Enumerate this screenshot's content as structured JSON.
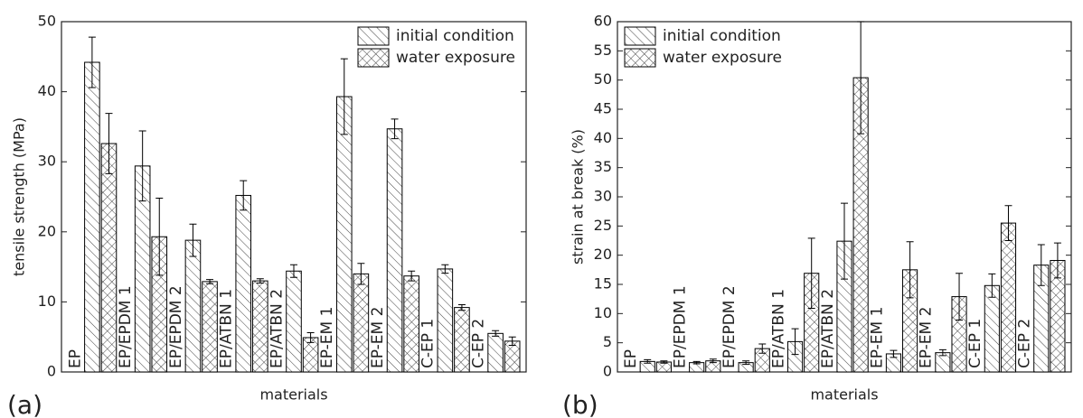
{
  "chart_data": [
    {
      "type": "bar",
      "panel_label": "(a)",
      "x_label": "materials",
      "y_label": "tensile strength (MPa)",
      "categories": [
        "EP",
        "EP/EPDM 1",
        "EP/EPDM 2",
        "EP/ATBN 1",
        "EP/ATBN 2",
        "EP-EM 1",
        "EP-EM 2",
        "C-EP 1",
        "C-EP 2"
      ],
      "series": [
        {
          "name": "initial condition",
          "color": "#000000",
          "pattern": "hatch",
          "values": [
            44.2,
            29.4,
            18.8,
            25.2,
            14.4,
            39.3,
            34.7,
            14.7,
            5.5
          ],
          "errors": [
            3.6,
            5.0,
            2.3,
            2.1,
            0.9,
            5.4,
            1.4,
            0.6,
            0.4
          ]
        },
        {
          "name": "water exposure",
          "color": "#000000",
          "pattern": "crosshatch",
          "values": [
            32.6,
            19.3,
            12.9,
            13.0,
            4.9,
            14.0,
            13.7,
            9.2,
            4.4
          ],
          "errors": [
            4.3,
            5.5,
            0.3,
            0.3,
            0.7,
            1.5,
            0.7,
            0.4,
            0.6
          ]
        }
      ],
      "ylim": [
        0,
        50
      ],
      "yticks": [
        0,
        10,
        20,
        30,
        40,
        50
      ],
      "legend": "top-right"
    },
    {
      "type": "bar",
      "panel_label": "(b)",
      "x_label": "materials",
      "y_label": "strain at break (%)",
      "categories": [
        "EP",
        "EP/EPDM 1",
        "EP/EPDM 2",
        "EP/ATBN 1",
        "EP/ATBN 2",
        "EP-EM 1",
        "EP-EM 2",
        "C-EP 1",
        "C-EP 2"
      ],
      "series": [
        {
          "name": "initial condition",
          "color": "#000000",
          "pattern": "hatch",
          "values": [
            1.8,
            1.6,
            1.6,
            5.2,
            22.4,
            3.1,
            3.3,
            14.8,
            18.3
          ],
          "errors": [
            0.3,
            0.2,
            0.3,
            2.2,
            6.5,
            0.6,
            0.5,
            2.0,
            3.5
          ]
        },
        {
          "name": "water exposure",
          "color": "#000000",
          "pattern": "crosshatch",
          "values": [
            1.7,
            1.9,
            4.0,
            16.9,
            50.4,
            17.5,
            12.9,
            25.5,
            19.1
          ],
          "errors": [
            0.2,
            0.3,
            0.8,
            6.0,
            9.6,
            4.8,
            4.0,
            3.0,
            3.0
          ]
        }
      ],
      "ylim": [
        0,
        60
      ],
      "yticks": [
        0,
        5,
        10,
        15,
        20,
        25,
        30,
        35,
        40,
        45,
        50,
        55,
        60
      ],
      "legend": "top-left"
    }
  ]
}
